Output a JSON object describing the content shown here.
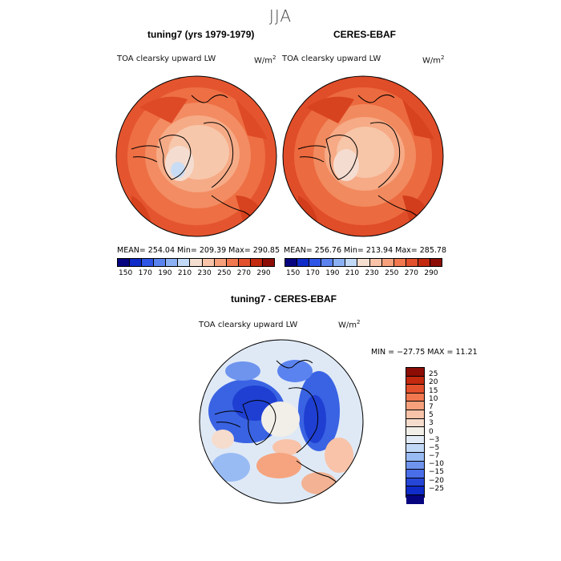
{
  "season": "JJA",
  "panels": [
    {
      "title": "tuning7 (yrs 1979-1979)",
      "field_label": "TOA clearsky upward LW",
      "units_base": "W/m",
      "units_exp": "2",
      "stats": "MEAN= 254.04   Min= 209.39   Max= 290.85",
      "cbar_colors": [
        "#06047e",
        "#0f2bc8",
        "#2f55e6",
        "#5b83ef",
        "#8cb0f4",
        "#c2d8f7",
        "#f4ded0",
        "#f8c3a8",
        "#f7a07c",
        "#f1784f",
        "#e2502c",
        "#c2290f",
        "#8b0d05"
      ],
      "cbar_ticks": [
        "150",
        "170",
        "190",
        "210",
        "230",
        "250",
        "270",
        "290"
      ]
    },
    {
      "title": "CERES-EBAF",
      "field_label": "TOA clearsky upward LW",
      "units_base": "W/m",
      "units_exp": "2",
      "stats": "MEAN= 256.76   Min= 213.94   Max= 285.78",
      "cbar_colors": [
        "#06047e",
        "#0f2bc8",
        "#2f55e6",
        "#5b83ef",
        "#8cb0f4",
        "#c2d8f7",
        "#f4ded0",
        "#f8c3a8",
        "#f7a07c",
        "#f1784f",
        "#e2502c",
        "#c2290f",
        "#8b0d05"
      ],
      "cbar_ticks": [
        "150",
        "170",
        "190",
        "210",
        "230",
        "250",
        "270",
        "290"
      ]
    }
  ],
  "diff": {
    "title": "tuning7 - CERES-EBAF",
    "field_label": "TOA clearsky upward LW",
    "units_base": "W/m",
    "units_exp": "2",
    "minmax": "MIN = −27.75 MAX =   11.21",
    "cbar_colors": [
      "#8b0d05",
      "#c2290f",
      "#e2502c",
      "#f1784f",
      "#f7a07c",
      "#f8c3a8",
      "#f6dccc",
      "#f2efe8",
      "#e3ecf6",
      "#c2d8f7",
      "#99bbf4",
      "#6f94ee",
      "#4a6ee8",
      "#2646d8",
      "#0f2bc8",
      "#06047e"
    ],
    "cbar_labels": [
      "25",
      "20",
      "15",
      "10",
      "7",
      "5",
      "3",
      "0",
      "−3",
      "−5",
      "−7",
      "−10",
      "−15",
      "−20",
      "−25"
    ]
  }
}
